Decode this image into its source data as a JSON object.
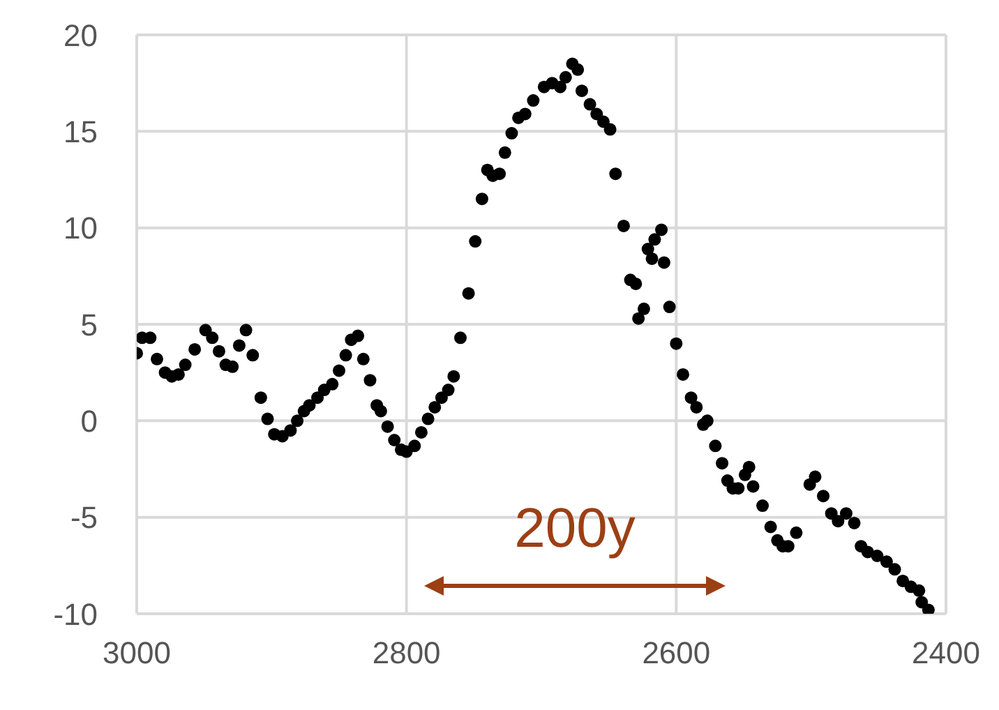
{
  "chart_data": {
    "type": "scatter",
    "marker": "circle",
    "grid": true,
    "xlim": [
      3000,
      2400
    ],
    "xticks": [
      3000,
      2800,
      2600,
      2400
    ],
    "ylim": [
      -10,
      20
    ],
    "yticks": [
      -10,
      -5,
      0,
      5,
      10,
      15,
      20
    ],
    "annotations": [
      "200y"
    ],
    "series": [
      {
        "color": "#000000",
        "x": [
          3000,
          2996,
          2990,
          2985,
          2979,
          2974,
          2969,
          2964,
          2957,
          2949,
          2944,
          2939,
          2934,
          2929,
          2924,
          2919,
          2914,
          2908,
          2903,
          2898,
          2892,
          2886,
          2881,
          2876,
          2872,
          2866,
          2861,
          2855,
          2850,
          2845,
          2841,
          2836,
          2832,
          2827,
          2822,
          2819,
          2814,
          2809,
          2804,
          2800,
          2794,
          2789,
          2784,
          2779,
          2774,
          2769,
          2765,
          2760,
          2754,
          2749,
          2744,
          2740,
          2736,
          2731,
          2727,
          2722,
          2717,
          2712,
          2706,
          2698,
          2692,
          2686,
          2682,
          2677,
          2673,
          2670,
          2664,
          2659,
          2654,
          2649,
          2645,
          2639,
          2634,
          2630,
          2628,
          2624,
          2621,
          2618,
          2616,
          2611,
          2609,
          2605,
          2600,
          2595,
          2589,
          2585,
          2580,
          2577,
          2571,
          2566,
          2562,
          2558,
          2554,
          2549,
          2546,
          2543,
          2536,
          2530,
          2525,
          2521,
          2517,
          2511,
          2501,
          2497,
          2491,
          2485,
          2480,
          2474,
          2468,
          2463,
          2458,
          2451,
          2444,
          2438,
          2432,
          2426,
          2420,
          2418,
          2413
        ],
        "values": [
          3.5,
          4.3,
          4.3,
          3.2,
          2.5,
          2.3,
          2.4,
          2.9,
          3.7,
          4.7,
          4.3,
          3.6,
          2.9,
          2.8,
          3.9,
          4.7,
          3.4,
          1.2,
          0.1,
          -0.7,
          -0.8,
          -0.5,
          0.0,
          0.5,
          0.8,
          1.2,
          1.6,
          1.9,
          2.6,
          3.4,
          4.2,
          4.4,
          3.2,
          2.1,
          0.8,
          0.5,
          -0.3,
          -1.0,
          -1.5,
          -1.6,
          -1.3,
          -0.6,
          0.1,
          0.7,
          1.2,
          1.6,
          2.3,
          4.3,
          6.6,
          9.3,
          11.5,
          13.0,
          12.7,
          12.8,
          13.9,
          14.9,
          15.7,
          15.9,
          16.6,
          17.3,
          17.5,
          17.3,
          17.8,
          18.5,
          18.2,
          17.1,
          16.4,
          15.9,
          15.5,
          15.1,
          12.8,
          10.1,
          7.3,
          7.1,
          5.3,
          5.8,
          8.9,
          8.4,
          9.4,
          9.9,
          8.2,
          5.9,
          4.0,
          2.4,
          1.2,
          0.7,
          -0.2,
          0.0,
          -1.3,
          -2.2,
          -3.1,
          -3.5,
          -3.5,
          -2.8,
          -2.4,
          -3.4,
          -4.4,
          -5.5,
          -6.2,
          -6.5,
          -6.5,
          -5.8,
          -3.3,
          -2.9,
          -3.9,
          -4.8,
          -5.2,
          -4.8,
          -5.3,
          -6.5,
          -6.8,
          -7.0,
          -7.3,
          -7.7,
          -8.3,
          -8.6,
          -8.8,
          -9.4,
          -9.8
        ]
      }
    ]
  }
}
